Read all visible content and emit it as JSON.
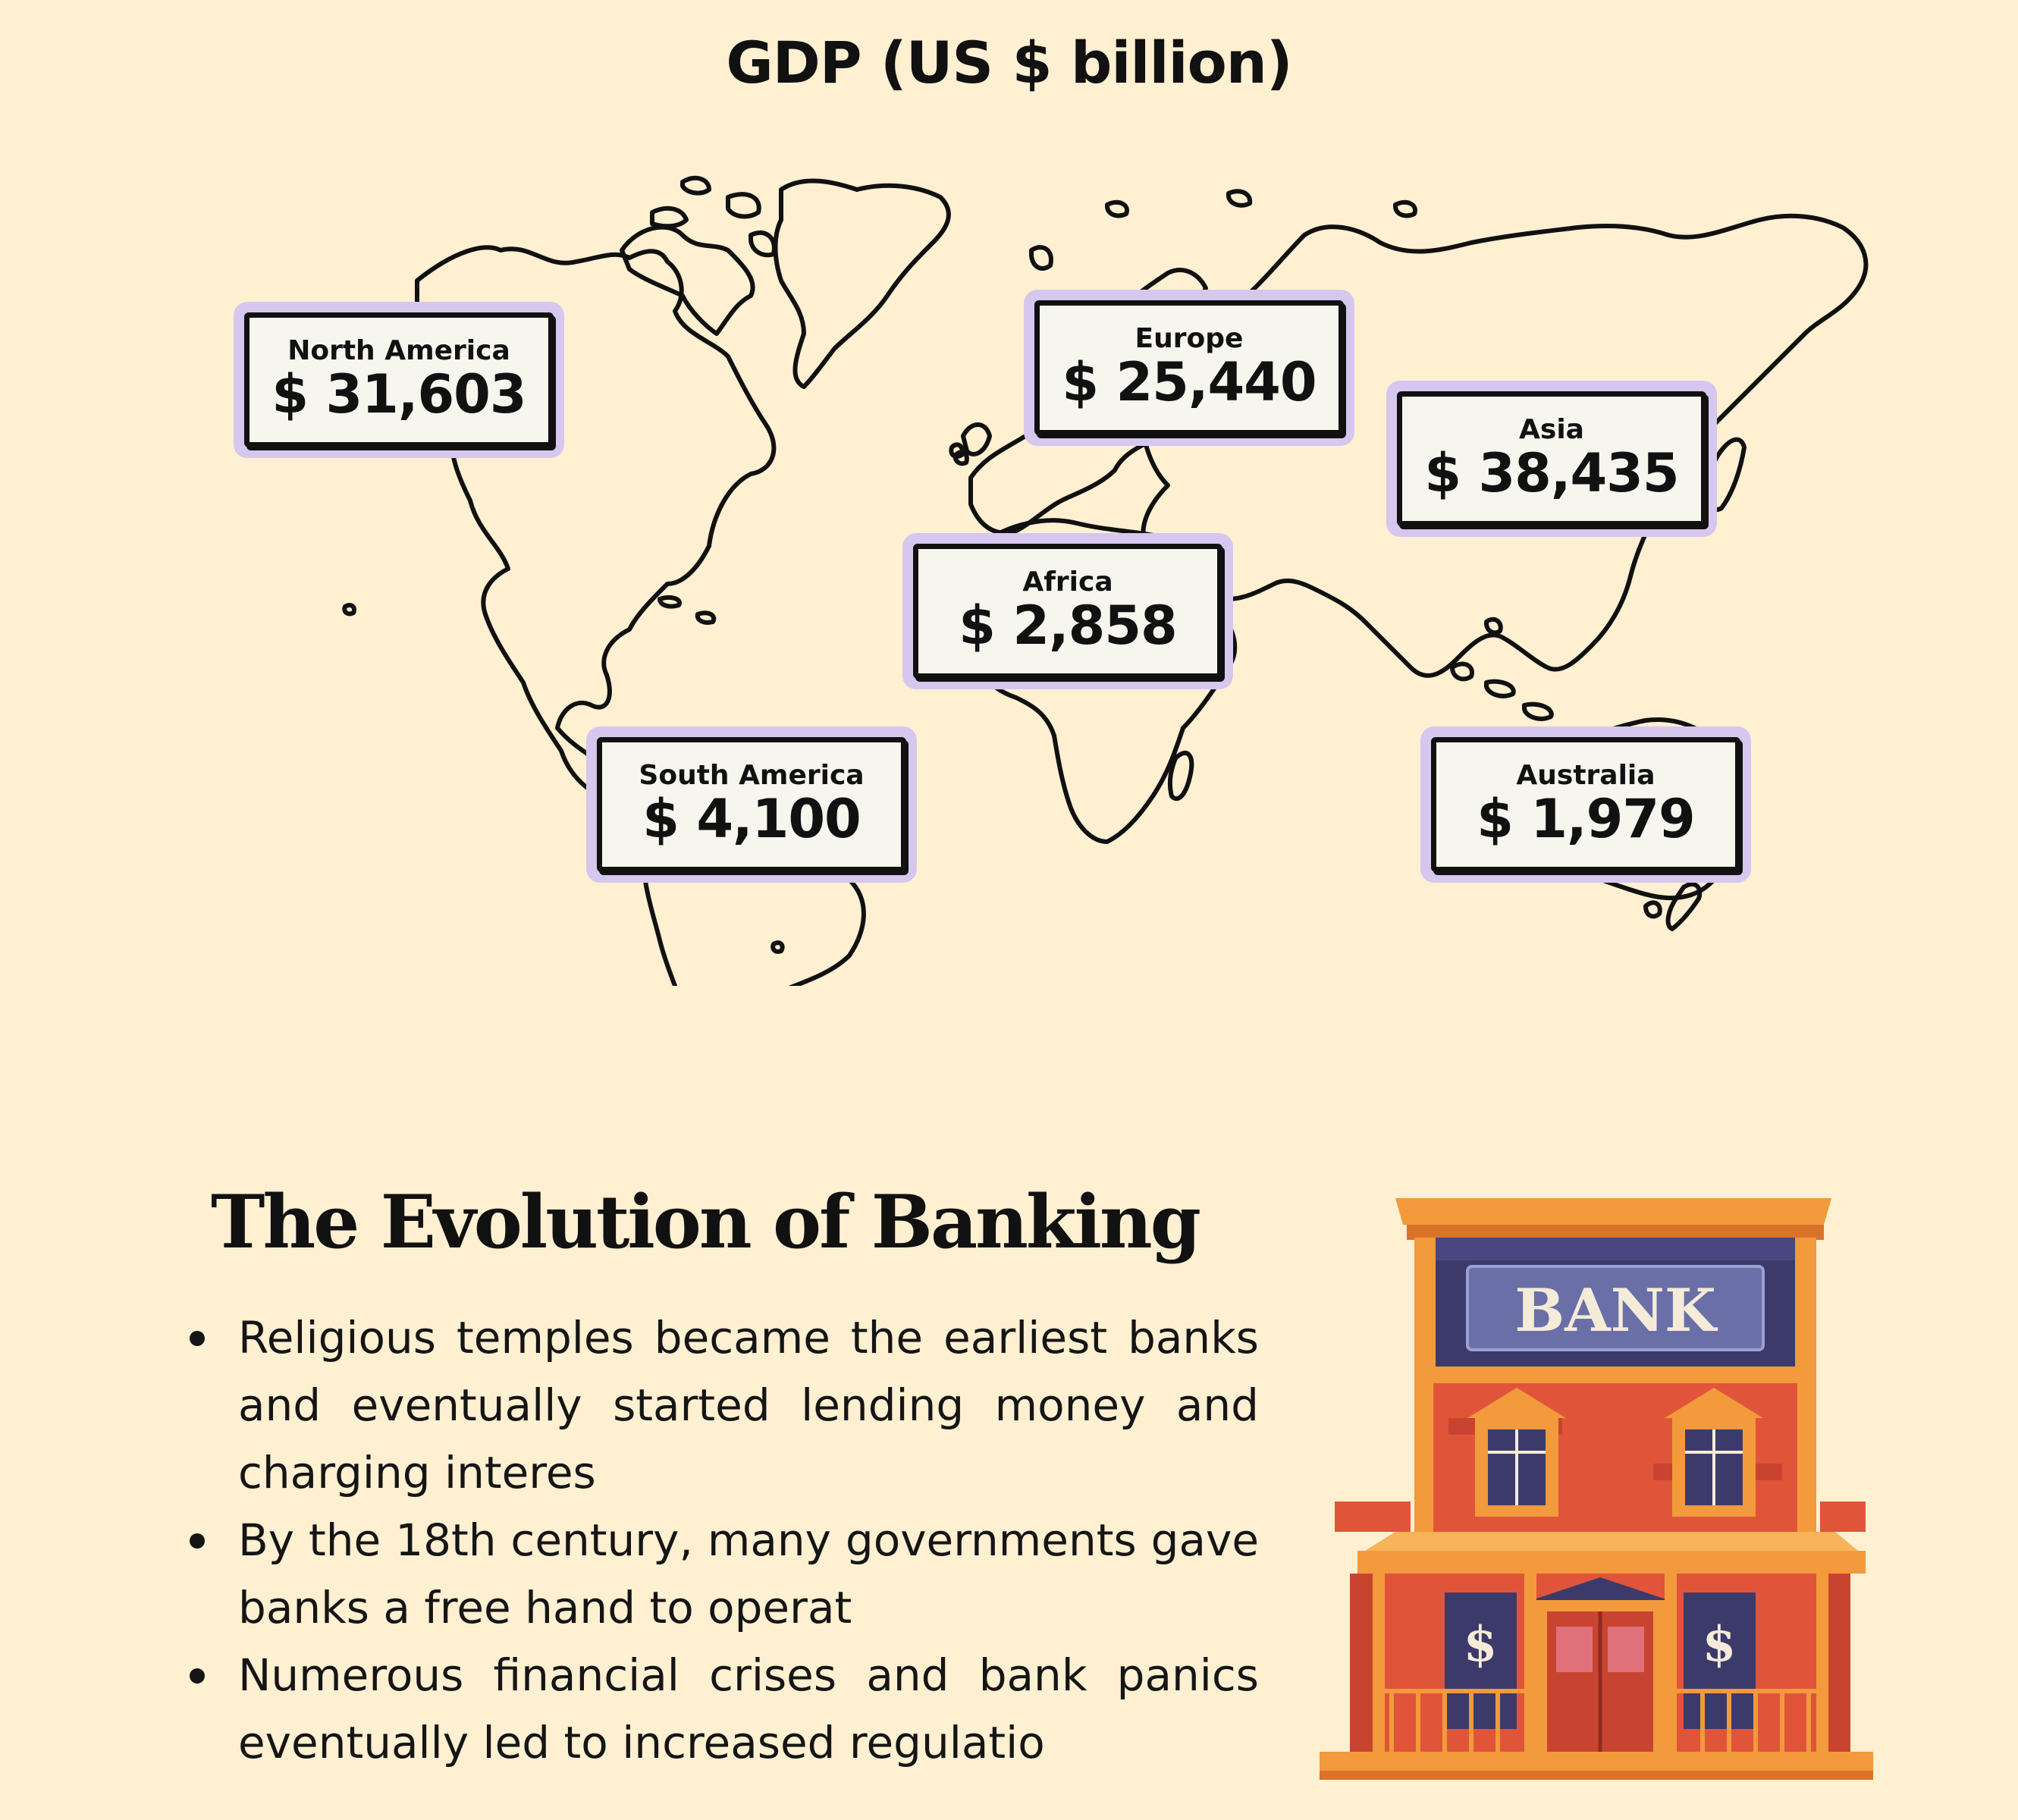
{
  "title": "GDP (US $ billion)",
  "regions": [
    {
      "name": "North America",
      "value": "$ 31,603"
    },
    {
      "name": "Europe",
      "value": "$ 25,440"
    },
    {
      "name": "Asia",
      "value": "$ 38,435"
    },
    {
      "name": "Africa",
      "value": "$ 2,858"
    },
    {
      "name": "South America",
      "value": "$ 4,100"
    },
    {
      "name": "Australia",
      "value": "$ 1,979"
    }
  ],
  "section": {
    "heading": "The Evolution of Banking",
    "bullets": [
      "Religious temples became the earliest banks and eventually started lending money and charging interes",
      "By the 18th century, many governments gave banks a free hand to operat",
      "Numerous financial crises and bank panics eventually led to increased regulatio"
    ]
  },
  "bank_sign": "BANK",
  "window_sign": "$",
  "colors": {
    "background": "#fff0d2",
    "card_border": "#d6c7ef",
    "card_fill": "#f6f5ee",
    "bank_orange": "#f29a3c",
    "bank_red": "#e0553a",
    "bank_navy": "#3c3a6b"
  },
  "icons": {
    "map": "world-map-outline",
    "illustration": "bank-building"
  }
}
